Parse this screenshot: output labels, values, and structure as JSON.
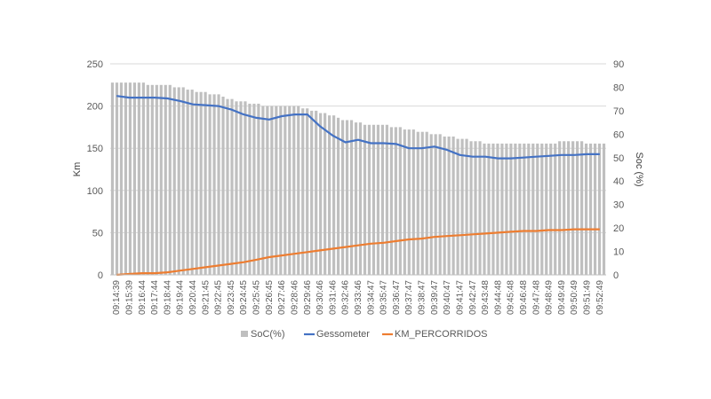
{
  "chart_data": {
    "type": "bar+line",
    "title": "",
    "xlabel": "",
    "ylabel": "Km",
    "y2label": "Soc (%)",
    "ylim": [
      0,
      250
    ],
    "y2lim": [
      0,
      90
    ],
    "yticks": [
      "0",
      "50",
      "100",
      "150",
      "200",
      "250"
    ],
    "y2ticks": [
      "0",
      "10",
      "20",
      "30",
      "40",
      "50",
      "60",
      "70",
      "80",
      "90"
    ],
    "grid": true,
    "legend_position": "bottom",
    "colors": {
      "soc": "#bfbfbf",
      "gessometer": "#4472c4",
      "km": "#ed7d31",
      "grid": "#d9d9d9"
    },
    "categories": [
      "09:14:39",
      "09:15:39",
      "09:16:44",
      "09:17:44",
      "09:18:44",
      "09:19:44",
      "09:20:44",
      "09:21:45",
      "09:22:45",
      "09:23:45",
      "09:24:45",
      "09:25:45",
      "09:26:45",
      "09:27:46",
      "09:28:46",
      "09:29:46",
      "09:30:46",
      "09:31:46",
      "09:32:46",
      "09:33:46",
      "09:34:47",
      "09:35:47",
      "09:36:47",
      "09:37:47",
      "09:38:47",
      "09:39:47",
      "09:40:47",
      "09:41:47",
      "09:42:47",
      "09:43:48",
      "09:44:48",
      "09:45:48",
      "09:46:48",
      "09:47:48",
      "09:48:49",
      "09:49:49",
      "09:50:49",
      "09:51:49",
      "09:52:49"
    ],
    "series": [
      {
        "name": "SoC(%)",
        "type": "bar",
        "axis": "right",
        "values": [
          82,
          82,
          82,
          81,
          81,
          80,
          79,
          78,
          77,
          75,
          74,
          73,
          72,
          72,
          72,
          71,
          69,
          68,
          66,
          65,
          64,
          64,
          63,
          62,
          61,
          60,
          59,
          58,
          57,
          56,
          56,
          56,
          56,
          56,
          56,
          57,
          57,
          56,
          56
        ]
      },
      {
        "name": "Gessometer",
        "type": "line",
        "axis": "left",
        "values": [
          212,
          210,
          210,
          210,
          209,
          206,
          202,
          201,
          200,
          196,
          190,
          186,
          184,
          188,
          190,
          190,
          176,
          165,
          157,
          160,
          156,
          156,
          155,
          150,
          150,
          152,
          148,
          142,
          140,
          140,
          138,
          138,
          139,
          140,
          141,
          142,
          142,
          143,
          143
        ]
      },
      {
        "name": "KM_PERCORRIDOS",
        "type": "line",
        "axis": "left",
        "values": [
          0,
          1,
          2,
          2,
          3,
          5,
          7,
          9,
          11,
          13,
          15,
          18,
          21,
          23,
          25,
          27,
          29,
          31,
          33,
          35,
          37,
          38,
          40,
          42,
          43,
          45,
          46,
          47,
          48,
          49,
          50,
          51,
          52,
          52,
          53,
          53,
          54,
          54,
          54
        ]
      }
    ]
  }
}
